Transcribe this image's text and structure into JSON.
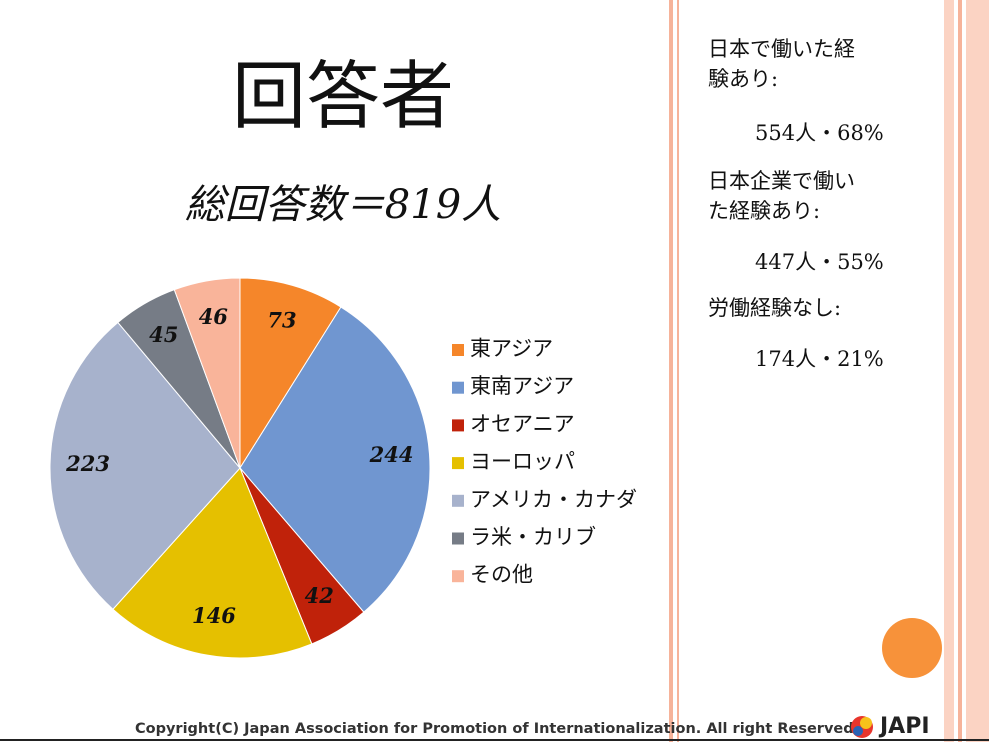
{
  "chart_data": {
    "type": "pie",
    "title": "回答者",
    "subtitle": "総回答数＝819人",
    "categories": [
      "東アジア",
      "東南アジア",
      "オセアニア",
      "ヨーロッパ",
      "アメリカ・カナダ",
      "ラ米・カリブ",
      "その他"
    ],
    "values": [
      73,
      244,
      42,
      146,
      223,
      45,
      46
    ],
    "colors": [
      "#f5862a",
      "#7096d0",
      "#c0220a",
      "#e5c000",
      "#a7b2cc",
      "#767c86",
      "#f9b49a"
    ]
  },
  "notes": [
    {
      "label": "日本で働いた経験あり:",
      "value": "554人・68%"
    },
    {
      "label": "日本企業で働いた経験あり:",
      "value": "447人・55%"
    },
    {
      "label": "労働経験なし:",
      "value": "174人・21%"
    }
  ],
  "footer": {
    "copyright": "Copyright(C) Japan Association for Promotion of Internationalization. All right Reserved",
    "logo": "JAPI"
  }
}
